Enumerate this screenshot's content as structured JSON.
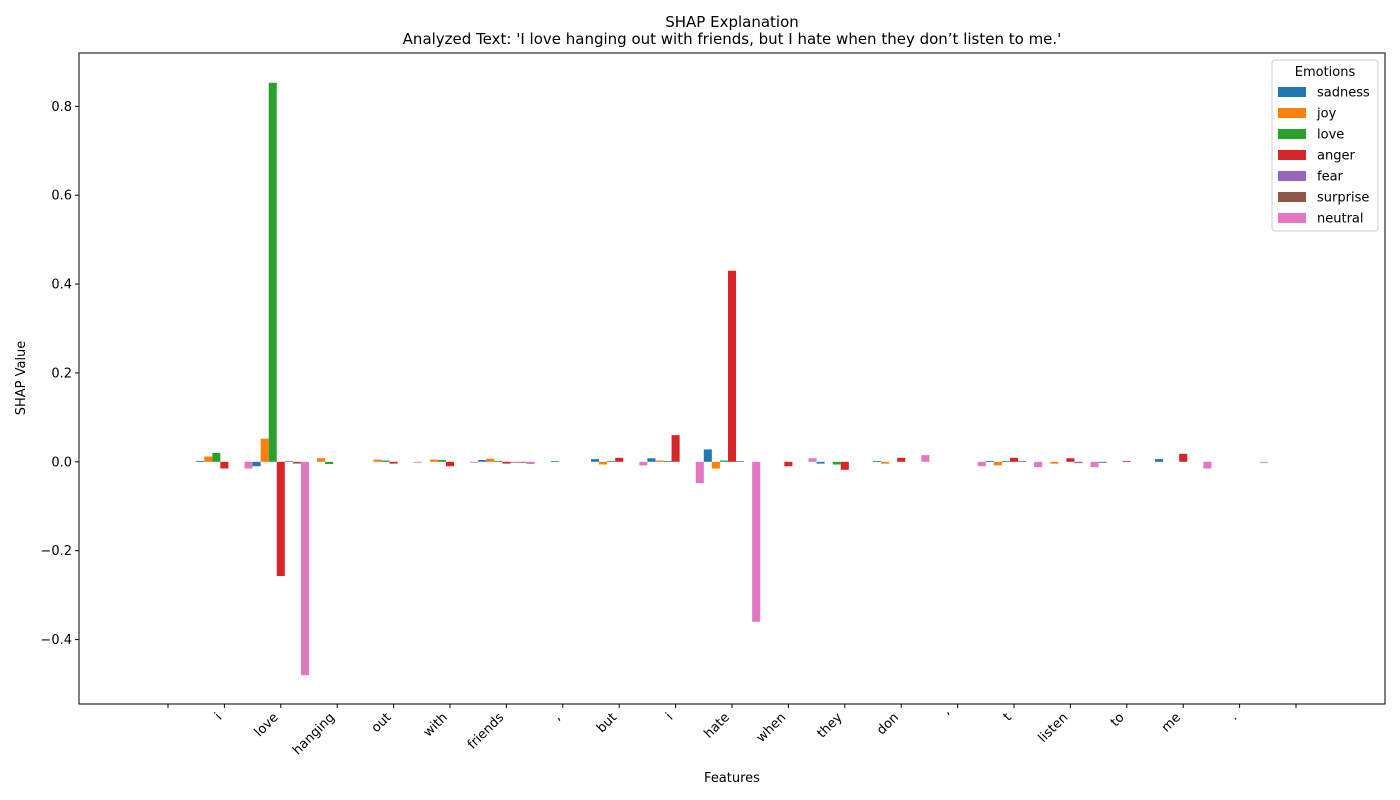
{
  "chart_data": {
    "type": "bar",
    "title": "SHAP Explanation",
    "subtitle": "Analyzed Text: 'I love hanging out with friends, but I hate when they don’t listen to me.'",
    "xlabel": "Features",
    "ylabel": "SHAP Value",
    "ylim": [
      -0.545,
      0.92
    ],
    "yticks": [
      -0.4,
      -0.2,
      0.0,
      0.2,
      0.4,
      0.6,
      0.8
    ],
    "ytick_labels": [
      "−0.4",
      "−0.2",
      "0.0",
      "0.2",
      "0.4",
      "0.6",
      "0.8"
    ],
    "categories": [
      "i",
      "love",
      "hanging",
      "out",
      "with",
      "friends",
      ",",
      "but",
      "i",
      "hate",
      "when",
      "they",
      "don",
      "’",
      "t",
      "listen",
      "to",
      "me",
      "."
    ],
    "legend": {
      "title": "Emotions",
      "placement": "upper-right"
    },
    "grid": false,
    "series": [
      {
        "name": "sadness",
        "color": "#1f77b4",
        "values": [
          0.002,
          -0.01,
          0.0,
          0.0,
          0.0,
          0.004,
          0.0,
          0.006,
          0.008,
          0.028,
          0.0,
          -0.004,
          0.002,
          0.0,
          0.002,
          0.0,
          -0.002,
          0.006,
          0.0
        ]
      },
      {
        "name": "joy",
        "color": "#ff7f0e",
        "values": [
          0.012,
          0.052,
          0.008,
          0.005,
          0.005,
          0.007,
          0.0,
          -0.006,
          0.003,
          -0.015,
          0.0,
          0.0,
          -0.004,
          0.0,
          -0.008,
          -0.004,
          0.0,
          0.0,
          0.0
        ]
      },
      {
        "name": "love",
        "color": "#2ca02c",
        "values": [
          0.02,
          0.853,
          -0.005,
          0.003,
          0.004,
          0.002,
          0.002,
          0.002,
          0.002,
          0.003,
          0.0,
          -0.006,
          0.0,
          0.0,
          0.002,
          0.0,
          0.0,
          0.0,
          0.0
        ]
      },
      {
        "name": "anger",
        "color": "#d62728",
        "values": [
          -0.015,
          -0.257,
          0.0,
          -0.004,
          -0.01,
          -0.004,
          0.0,
          0.009,
          0.06,
          0.43,
          -0.01,
          -0.018,
          0.009,
          0.0,
          0.009,
          0.008,
          0.002,
          0.018,
          0.0
        ]
      },
      {
        "name": "fear",
        "color": "#9467bd",
        "values": [
          0.0,
          0.002,
          0.0,
          0.0,
          0.0,
          -0.002,
          0.0,
          0.0,
          0.0,
          0.002,
          0.0,
          0.0,
          0.0,
          0.0,
          0.002,
          -0.003,
          0.0,
          0.0,
          0.0
        ]
      },
      {
        "name": "surprise",
        "color": "#8c564b",
        "values": [
          0.0,
          -0.004,
          0.0,
          0.0,
          0.0,
          -0.002,
          0.0,
          0.0,
          0.0,
          0.0,
          0.0,
          0.0,
          0.0,
          0.0,
          0.0,
          0.0,
          0.0,
          0.0,
          0.0
        ]
      },
      {
        "name": "neutral",
        "color": "#e377c2",
        "values": [
          -0.015,
          -0.48,
          0.0,
          -0.002,
          -0.002,
          -0.005,
          0.0,
          -0.008,
          -0.048,
          -0.36,
          0.008,
          0.0,
          0.015,
          -0.01,
          -0.012,
          -0.012,
          0.0,
          -0.015,
          -0.002
        ]
      }
    ]
  }
}
